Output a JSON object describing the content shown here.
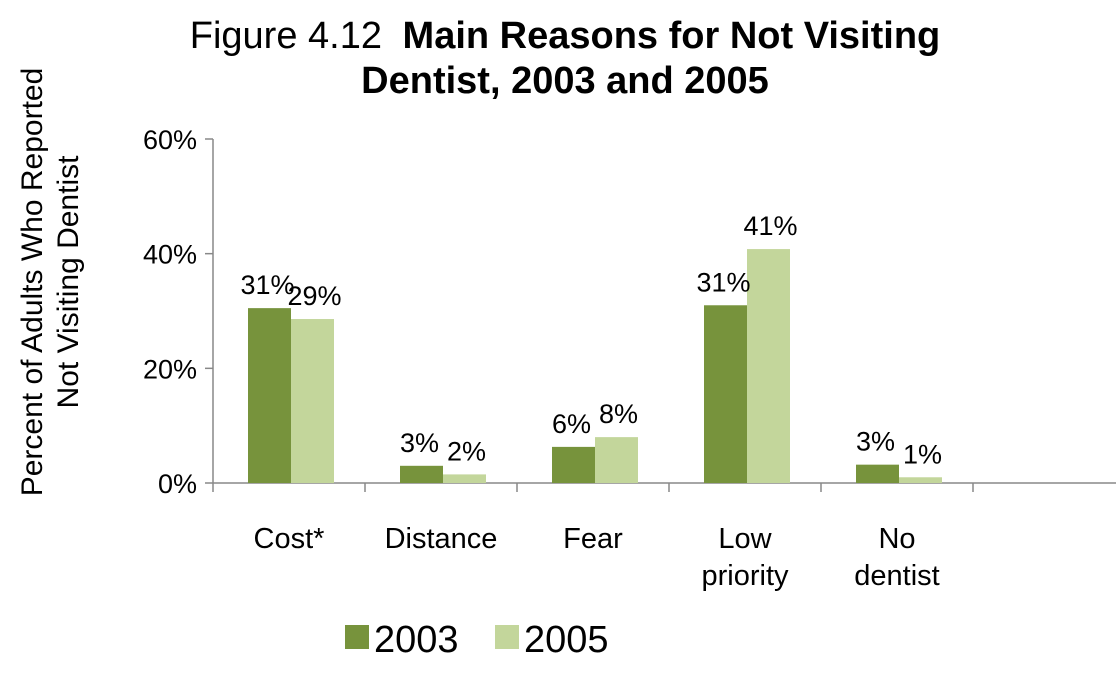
{
  "chart_data": {
    "type": "bar",
    "title_prefix": "Figure 4.12",
    "title_bold_line1": "Main Reasons for Not Visiting",
    "title_bold_line2": "Dentist, 2003 and 2005",
    "ylabel_line1": "Percent of Adults Who Reported",
    "ylabel_line2": "Not Visiting Dentist",
    "xlabel": "",
    "categories": [
      [
        "Cost*"
      ],
      [
        "Distance"
      ],
      [
        "Fear"
      ],
      [
        "Low",
        "priority"
      ],
      [
        "No",
        "dentist"
      ]
    ],
    "series": [
      {
        "name": "2003",
        "color": "#77933c",
        "values": [
          30.5,
          3.0,
          6.3,
          31.0,
          3.2
        ],
        "labels": [
          "31%",
          "3%",
          "6%",
          "31%",
          "3%"
        ]
      },
      {
        "name": "2005",
        "color": "#c3d69b",
        "values": [
          28.6,
          1.5,
          8.0,
          40.8,
          1.0
        ],
        "labels": [
          "29%",
          "2%",
          "8%",
          "41%",
          "1%"
        ]
      }
    ],
    "ylim": [
      0,
      60
    ],
    "yticks": [
      0,
      20,
      40,
      60
    ],
    "ytick_labels": [
      "0%",
      "20%",
      "40%",
      "60%"
    ],
    "grid": false,
    "legend_position": "bottom"
  }
}
